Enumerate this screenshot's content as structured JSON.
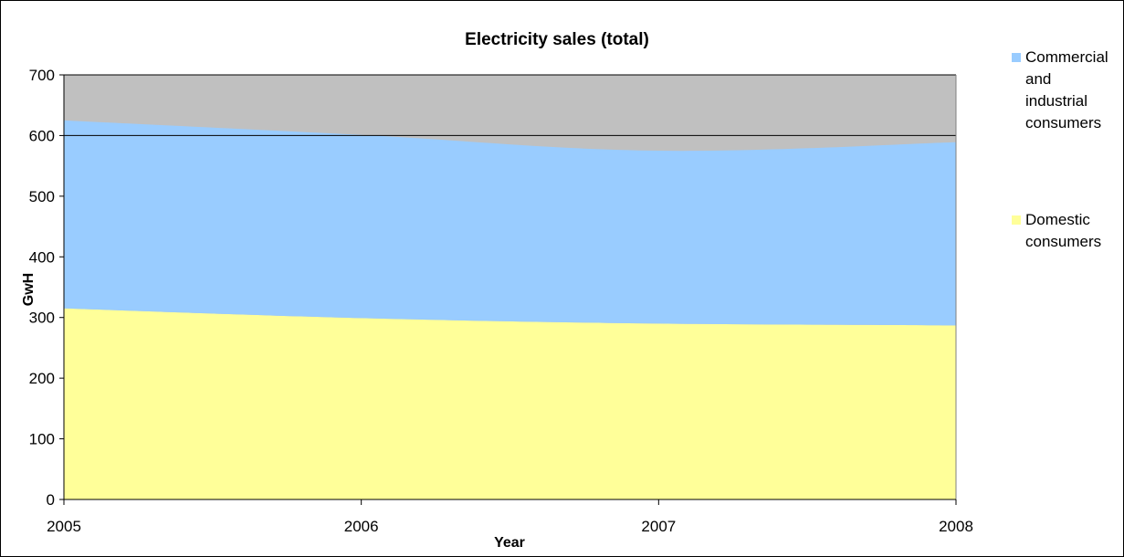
{
  "chart_data": {
    "type": "area",
    "stacked": true,
    "title": "Electricity sales (total)",
    "xlabel": "Year",
    "ylabel": "GwH",
    "x": [
      "2005",
      "2006",
      "2007",
      "2008"
    ],
    "ylim": [
      0,
      700
    ],
    "yticks": [
      "0",
      "100",
      "200",
      "300",
      "400",
      "500",
      "600",
      "700"
    ],
    "plot_background": "#c0c0c0",
    "gridlines": [
      600,
      700
    ],
    "series": [
      {
        "name": "Domestic consumers",
        "color": "#ffff99",
        "values": [
          315,
          299,
          290,
          287
        ]
      },
      {
        "name": "Commercial and industrial consumers",
        "color": "#99ccff",
        "values": [
          310,
          302,
          285,
          302
        ]
      }
    ],
    "legend": {
      "position": "right",
      "entries": [
        {
          "lines": [
            "Commercial",
            "and",
            "industrial",
            "consumers"
          ],
          "color": "#99ccff"
        },
        {
          "lines": [
            "Domestic",
            "consumers"
          ],
          "color": "#ffff99"
        }
      ]
    }
  }
}
